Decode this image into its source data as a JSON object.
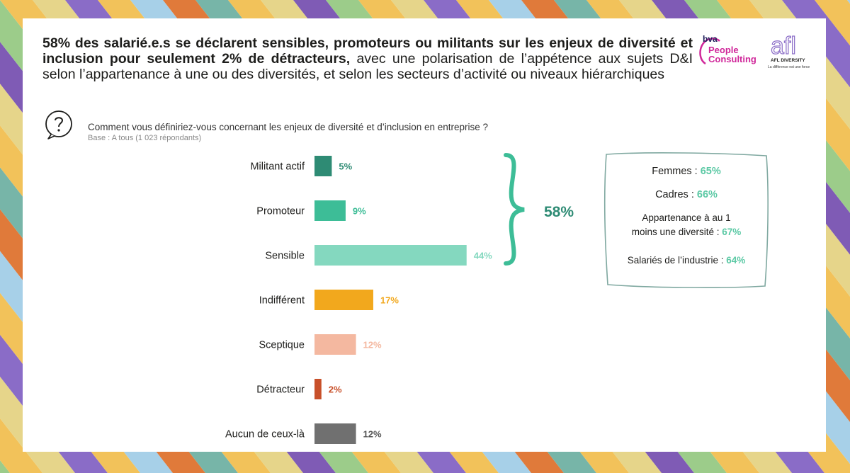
{
  "headline": {
    "bold": "58% des salarié.e.s se déclarent sensibles, promoteurs ou militants sur les enjeux de diversité et inclusion pour seulement 2% de détracteurs,",
    "rest": " avec une polarisation de l’appétence aux sujets D&I selon l’appartenance à une ou des diversités, et selon les secteurs d’activité ou niveaux hiérarchiques"
  },
  "logos": {
    "bva": "bva",
    "bva_line1": "People",
    "bva_line2": "Consulting",
    "afl": "afl",
    "afl_sub": "AFL DIVERSITY",
    "afl_tagline": "La différence est une force"
  },
  "question": "Comment vous définiriez-vous concernant les enjeux de diversité et d’inclusion en entreprise ?",
  "base": "Base : A tous (1 023 répondants)",
  "total_label": "58%",
  "callout": {
    "line1_text": "Femmes : ",
    "line1_value": "65%",
    "line2_text": "Cadres : ",
    "line2_value": "66%",
    "line3a_text": "Appartenance à au 1",
    "line3b_text": "moins une diversité : ",
    "line3_value": "67%",
    "line4_text": "Salariés de l’industrie : ",
    "line4_value": "64%"
  },
  "chart_data": {
    "type": "bar",
    "orientation": "horizontal",
    "categories": [
      "Militant actif",
      "Promoteur",
      "Sensible",
      "Indifférent",
      "Sceptique",
      "Détracteur",
      "Aucun de ceux-là"
    ],
    "values": [
      5,
      9,
      44,
      17,
      12,
      2,
      12
    ],
    "value_labels": [
      "5%",
      "9%",
      "44%",
      "17%",
      "12%",
      "2%",
      "12%"
    ],
    "unit": "%",
    "bar_colors": [
      "#2e8b74",
      "#3dbd97",
      "#84d8bf",
      "#f2a81d",
      "#f4b8a0",
      "#c8502a",
      "#707070"
    ],
    "label_colors": [
      "#2e8b74",
      "#3dbd97",
      "#84d8bf",
      "#f2a81d",
      "#f4b8a0",
      "#c8502a",
      "#555555"
    ],
    "bracket_group": [
      "Militant actif",
      "Promoteur",
      "Sensible"
    ]
  },
  "colors": {
    "brace": "#3dbd97",
    "callout_highlight": "#5cc9a5",
    "total": "#2e8b74"
  }
}
